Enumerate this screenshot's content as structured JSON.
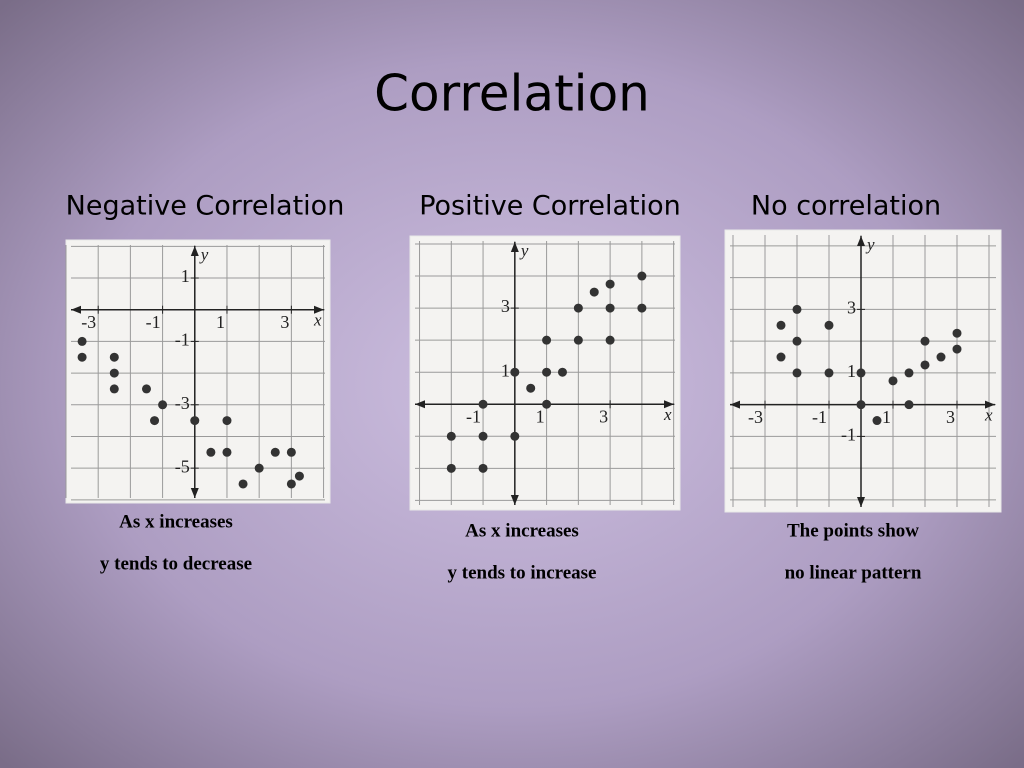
{
  "title": "Correlation",
  "chart_data": [
    {
      "type": "scatter",
      "title": "Negative Correlation",
      "x_label": "x",
      "y_label": "y",
      "xlim": [
        -4,
        4.2
      ],
      "ylim": [
        -6.1,
        2.2
      ],
      "xticks": [
        -3,
        -1,
        1,
        3
      ],
      "yticks": [
        1,
        -1,
        -3,
        -5
      ],
      "grid": true,
      "color": "#333333",
      "x": [
        -3.5,
        -3.5,
        -2.5,
        -2.5,
        -2.5,
        -1.5,
        -1,
        -1.25,
        0,
        1,
        0.5,
        1,
        1.5,
        2,
        2.5,
        3,
        3,
        3.25
      ],
      "y": [
        -1,
        -1.5,
        -1.5,
        -2,
        -2.5,
        -2.5,
        -3,
        -3.5,
        -3.5,
        -3.5,
        -4.5,
        -4.5,
        -5.5,
        -5,
        -4.5,
        -4.5,
        -5.5,
        -5.25
      ],
      "annotations": [
        "As x increases",
        "y tends to decrease"
      ]
    },
    {
      "type": "scatter",
      "title": "Positive Correlation",
      "x_label": "x",
      "y_label": "y",
      "xlim": [
        -3.3,
        5.2
      ],
      "ylim": [
        -3.3,
        5.25
      ],
      "xticks": [
        -1,
        1,
        3
      ],
      "yticks": [
        1,
        3
      ],
      "grid": true,
      "color": "#333333",
      "x": [
        -2,
        -2,
        -1,
        -1,
        -1,
        0,
        0,
        0.5,
        1,
        1,
        1,
        1.5,
        2,
        2,
        2.5,
        3,
        3,
        3,
        4,
        4
      ],
      "y": [
        -1,
        -2,
        0,
        -1,
        -2,
        -1,
        1,
        0.5,
        1,
        0,
        2,
        1,
        2,
        3,
        3.5,
        3.75,
        3,
        2,
        4,
        3
      ],
      "annotations": [
        "As x increases",
        "y tends to increase"
      ]
    },
    {
      "type": "scatter",
      "title": "No correlation",
      "x_label": "x",
      "y_label": "y",
      "xlim": [
        -4.25,
        4.375
      ],
      "ylim": [
        -3.38,
        5.5
      ],
      "xticks": [
        -3,
        -1,
        1,
        3
      ],
      "yticks": [
        -1,
        1,
        3
      ],
      "grid": true,
      "color": "#333333",
      "x": [
        -2.5,
        -2.5,
        -2,
        -2,
        -2,
        -1,
        -1,
        0,
        0,
        0.5,
        1,
        1.5,
        1.5,
        2,
        2,
        2.5,
        3,
        3
      ],
      "y": [
        2.5,
        1.5,
        3,
        2,
        1,
        2.5,
        1,
        1,
        0,
        -0.5,
        0.75,
        1,
        0,
        2,
        1.25,
        1.5,
        2.25,
        1.75
      ],
      "annotations": [
        "The points show",
        "no linear pattern"
      ]
    }
  ]
}
